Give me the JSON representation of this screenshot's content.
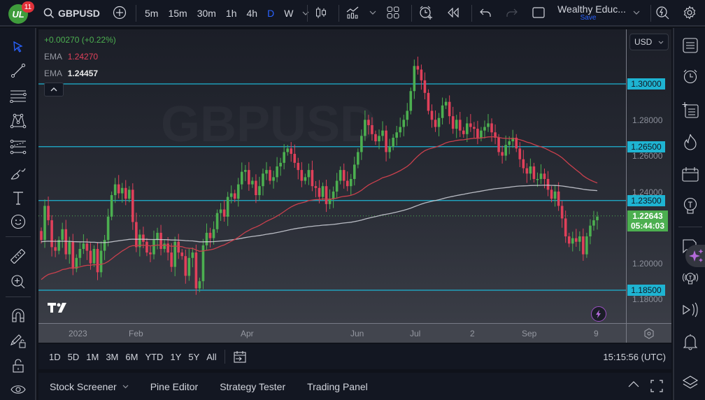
{
  "topbar": {
    "notifications_count": "11",
    "avatar_initials": "UL",
    "symbol": "GBPUSD",
    "timeframes": [
      "5m",
      "15m",
      "30m",
      "1h",
      "4h",
      "D",
      "W"
    ],
    "active_timeframe": "D",
    "layout_name": "Wealthy Educ...",
    "save_label": "Save"
  },
  "legend": {
    "change": "+0.00270 (+0.22%)",
    "ema1_label": "EMA",
    "ema1_value": "1.24270",
    "ema2_label": "EMA",
    "ema2_value": "1.24457"
  },
  "watermark": "GBPUSD",
  "price_axis": {
    "currency": "USD",
    "labels": [
      "1.28000",
      "1.26000",
      "1.24000",
      "1.20000",
      "1.18000"
    ],
    "hline_tags": [
      "1.30000",
      "1.26500",
      "1.23500",
      "1.18500"
    ],
    "current_price": "1.22643",
    "countdown": "05:44:03"
  },
  "time_axis": {
    "labels": [
      "2023",
      "Feb",
      "Apr",
      "Jun",
      "Jul",
      "2",
      "Sep",
      "9"
    ]
  },
  "range_bar": {
    "ranges": [
      "1D",
      "5D",
      "1M",
      "3M",
      "6M",
      "YTD",
      "1Y",
      "5Y",
      "All"
    ],
    "clock": "15:15:56 (UTC)"
  },
  "bottom_panel": {
    "tabs": [
      "Stock Screener",
      "Pine Editor",
      "Strategy Tester",
      "Trading Panel"
    ]
  },
  "colors": {
    "up": "#4caf50",
    "down": "#e0405a",
    "hline": "#1eb4d2",
    "ema_fast": "#c9404d",
    "ema_slow": "#d1d4dc",
    "accent": "#2962ff"
  },
  "chart_data": {
    "type": "candlestick",
    "symbol": "GBPUSD",
    "interval": "D",
    "y_range": [
      1.17,
      1.315
    ],
    "horizontal_levels": [
      1.3,
      1.265,
      1.235,
      1.185
    ],
    "current_price": 1.22643,
    "closes": [
      1.213,
      1.232,
      1.224,
      1.209,
      1.207,
      1.213,
      1.219,
      1.205,
      1.212,
      1.197,
      1.203,
      1.208,
      1.211,
      1.207,
      1.2,
      1.208,
      1.195,
      1.207,
      1.213,
      1.226,
      1.238,
      1.244,
      1.239,
      1.242,
      1.236,
      1.241,
      1.223,
      1.209,
      1.216,
      1.212,
      1.206,
      1.205,
      1.213,
      1.217,
      1.208,
      1.211,
      1.206,
      1.198,
      1.212,
      1.206,
      1.204,
      1.193,
      1.203,
      1.206,
      1.186,
      1.19,
      1.21,
      1.217,
      1.214,
      1.219,
      1.228,
      1.23,
      1.226,
      1.237,
      1.239,
      1.236,
      1.244,
      1.251,
      1.252,
      1.244,
      1.246,
      1.238,
      1.243,
      1.25,
      1.252,
      1.246,
      1.248,
      1.254,
      1.256,
      1.262,
      1.264,
      1.261,
      1.256,
      1.252,
      1.246,
      1.248,
      1.252,
      1.243,
      1.242,
      1.237,
      1.243,
      1.233,
      1.236,
      1.24,
      1.246,
      1.252,
      1.246,
      1.243,
      1.247,
      1.255,
      1.262,
      1.271,
      1.28,
      1.277,
      1.272,
      1.268,
      1.271,
      1.274,
      1.262,
      1.265,
      1.27,
      1.273,
      1.276,
      1.28,
      1.285,
      1.296,
      1.31,
      1.308,
      1.302,
      1.295,
      1.285,
      1.28,
      1.276,
      1.281,
      1.288,
      1.29,
      1.282,
      1.275,
      1.28,
      1.274,
      1.272,
      1.278,
      1.276,
      1.275,
      1.27,
      1.274,
      1.276,
      1.278,
      1.273,
      1.27,
      1.262,
      1.26,
      1.266,
      1.268,
      1.27,
      1.264,
      1.258,
      1.253,
      1.25,
      1.254,
      1.247,
      1.247,
      1.25,
      1.247,
      1.241,
      1.236,
      1.24,
      1.232,
      1.225,
      1.215,
      1.211,
      1.214,
      1.212,
      1.215,
      1.205,
      1.215,
      1.221,
      1.224,
      1.226
    ]
  }
}
